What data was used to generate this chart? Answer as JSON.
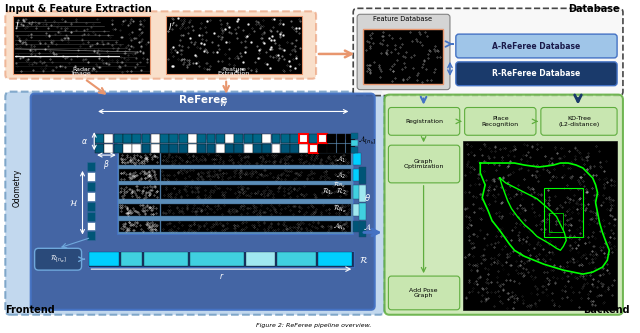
{
  "fig_width": 6.4,
  "fig_height": 3.33,
  "bg_color": "#ffffff",
  "labels": {
    "input_title": "Input & Feature Extraction",
    "database_title": "Database",
    "frontend": "Frontend",
    "backend": "Backend",
    "referee": "ReFeree"
  },
  "colors": {
    "orange_border": "#E8966E",
    "orange_fill": "#F5CBA7",
    "blue_dark": "#1A3A6B",
    "blue_mid": "#4472C4",
    "blue_light": "#6FA8DC",
    "blue_very_light": "#9FC5E8",
    "blue_referee": "#3D5FA0",
    "blue_outer": "#7BAFD4",
    "blue_outer_fill": "#A8C8E8",
    "blue_outer_dark": "#5B8DB8",
    "green_dark": "#5FAD3E",
    "green_fill": "#C8E6B0",
    "gray_light": "#D0D0D0",
    "gray_dark": "#777777",
    "cyan_bright": "#00CFFF",
    "cyan_mid": "#40D0E0",
    "cyan_light": "#A0E8F0",
    "teal_dark": "#005577",
    "teal_mid": "#006688",
    "white": "#FFFFFF",
    "black": "#000000",
    "red": "#FF0000",
    "db_border": "#333333"
  }
}
